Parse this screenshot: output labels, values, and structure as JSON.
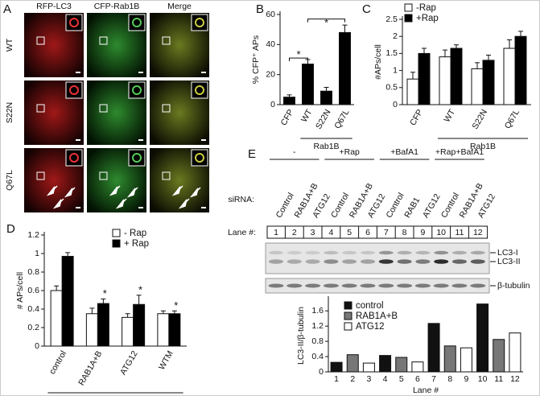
{
  "panel_a": {
    "letter": "A",
    "columns": [
      "RFP-LC3",
      "CFP-Rab1B",
      "Merge"
    ],
    "rows": [
      "WT",
      "S22N",
      "Q67L"
    ]
  },
  "blot_e": {
    "letter": "E",
    "groups": [
      "-",
      "+Rap",
      "+BafA1",
      "+Rap+BafA1"
    ],
    "sirna_label": "siRNA:",
    "sirna": [
      "Control",
      "RAB1A+B",
      "ATG12",
      "Control",
      "RAB1A+B",
      "ATG12",
      "Control",
      "RAB1",
      "ATG12",
      "Control",
      "RAB1A+B",
      "ATG12"
    ],
    "lane_label": "Lane #:",
    "lanes": [
      1,
      2,
      3,
      4,
      5,
      6,
      7,
      8,
      9,
      10,
      11,
      12
    ],
    "bands": [
      "LC3-I",
      "LC3-II",
      "β-tubulin"
    ]
  },
  "chart_data": [
    {
      "type": "bar",
      "panel_label": "B",
      "ylabel": "% CFP⁺ APs",
      "categories": [
        "CFP",
        "WT",
        "S22N",
        "Q67L"
      ],
      "values": [
        5,
        27,
        9,
        48
      ],
      "errors": [
        1.5,
        3,
        2.5,
        5
      ],
      "color": "#000000",
      "ylim": [
        0,
        60
      ],
      "yticks": [
        0,
        20,
        40,
        60
      ],
      "group_label": "Rab1B",
      "annotations": [
        "*",
        "*"
      ]
    },
    {
      "type": "bar",
      "panel_label": "C",
      "ylabel": "#APs/cell",
      "categories": [
        "CFP",
        "WT",
        "S22N",
        "Q67L"
      ],
      "series": [
        {
          "name": "-Rap",
          "color": "#ffffff",
          "values": [
            0.75,
            1.4,
            1.05,
            1.65
          ],
          "errors": [
            0.2,
            0.2,
            0.18,
            0.25
          ]
        },
        {
          "name": "+Rap",
          "color": "#000000",
          "values": [
            1.5,
            1.65,
            1.3,
            2.0
          ],
          "errors": [
            0.15,
            0.1,
            0.15,
            0.15
          ]
        }
      ],
      "ylim": [
        0,
        2.5
      ],
      "yticks": [
        0,
        0.5,
        1,
        1.5,
        2,
        2.5
      ],
      "group_label": "Rab1B"
    },
    {
      "type": "bar",
      "panel_label": "D",
      "ylabel": "# APs/cell",
      "categories": [
        "control",
        "RAB1A+B",
        "ATG12",
        "WTM"
      ],
      "series": [
        {
          "name": "- Rap",
          "color": "#ffffff",
          "values": [
            0.6,
            0.35,
            0.31,
            0.35
          ],
          "errors": [
            0.05,
            0.06,
            0.04,
            0.03
          ]
        },
        {
          "name": "+ Rap",
          "color": "#000000",
          "values": [
            0.97,
            0.46,
            0.45,
            0.35
          ],
          "errors": [
            0.04,
            0.05,
            0.1,
            0.03
          ]
        }
      ],
      "ylim": [
        0,
        1.2
      ],
      "yticks": [
        0,
        0.2,
        0.4,
        0.6,
        0.8,
        1,
        1.2
      ],
      "group_label": "siRNA",
      "annotations": [
        "*",
        "*",
        "*"
      ]
    },
    {
      "type": "bar",
      "ylabel": "LC3-II/β-tubulin",
      "xlabel": "Lane #",
      "categories": [
        1,
        2,
        3,
        4,
        5,
        6,
        7,
        8,
        9,
        10,
        11,
        12
      ],
      "series": [
        {
          "name": "control",
          "color": "#111111",
          "values": [
            0.25,
            null,
            null,
            0.43,
            null,
            null,
            1.27,
            null,
            null,
            1.78,
            null,
            null
          ]
        },
        {
          "name": "RAB1A+B",
          "color": "#777777",
          "values": [
            null,
            0.45,
            null,
            null,
            0.38,
            null,
            null,
            0.68,
            null,
            null,
            0.85,
            null
          ]
        },
        {
          "name": "ATG12",
          "color": "#ffffff",
          "values": [
            null,
            null,
            0.23,
            null,
            null,
            0.26,
            null,
            null,
            0.63,
            null,
            null,
            1.02
          ]
        }
      ],
      "ylim": [
        0,
        1.9
      ],
      "yticks": [
        0,
        0.4,
        0.8,
        1.2,
        1.6
      ]
    }
  ]
}
